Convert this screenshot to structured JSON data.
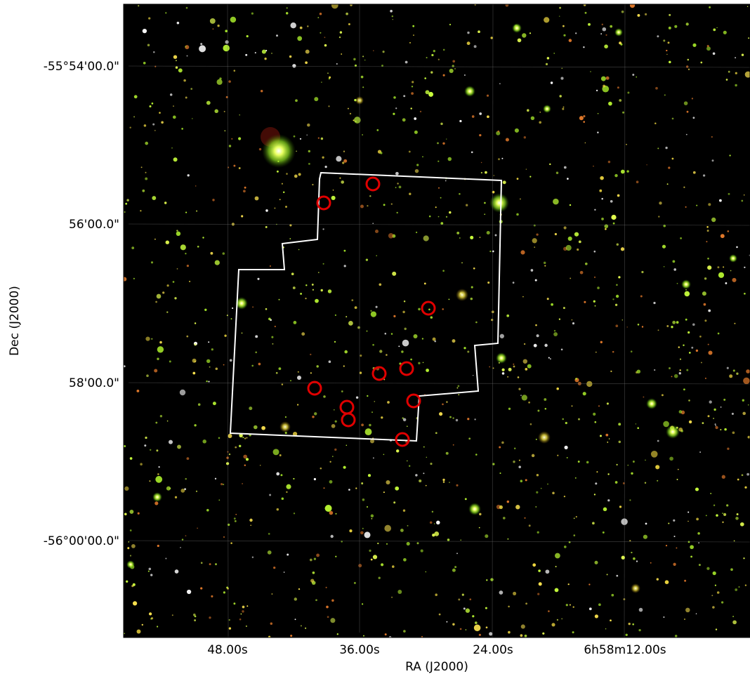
{
  "axes": {
    "xlabel": "RA (J2000)",
    "ylabel": "Dec (J2000)",
    "x_ticks": [
      "48.00s",
      "36.00s",
      "24.00s",
      "6h58m12.00s"
    ],
    "y_ticks": [
      "-55°54'00.0\"",
      "56'00.0\"",
      "58'00.0\"",
      "-56°00'00.0\""
    ]
  },
  "colors": {
    "sky_background": "#000000",
    "footprint_outline": "#ffffff",
    "marker_circle": "#e00000",
    "star_green": "#c8ff3c",
    "star_yellow": "#ffe650",
    "star_orange": "#e0782a",
    "grid": "#808080"
  },
  "markers": {
    "shape": "circle",
    "count": 11
  },
  "footprint": {
    "shape": "polygon"
  }
}
